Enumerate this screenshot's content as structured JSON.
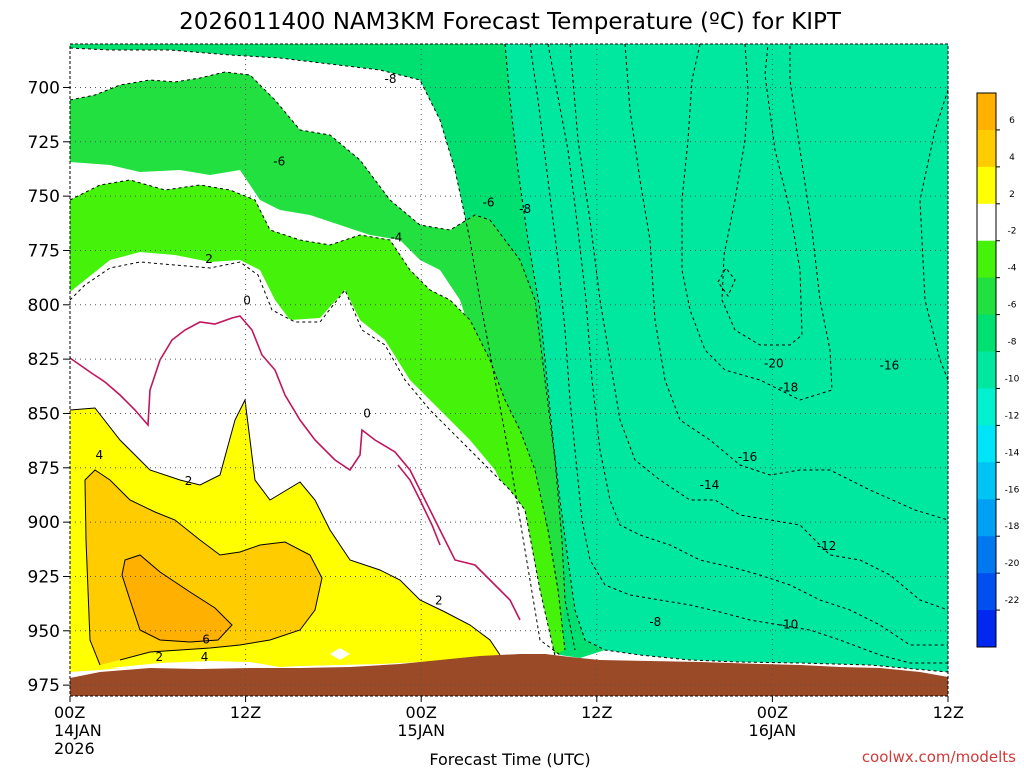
{
  "chart_data": {
    "type": "heatmap",
    "title": "2026011400 NAM3KM Forecast Temperature (ºC) for KIPT",
    "xlabel": "Forecast Time (UTC)",
    "ylabel": "",
    "credit": "coolwx.com/modelts",
    "x_range_hours": [
      0,
      60
    ],
    "y_range_hpa": [
      980,
      680
    ],
    "y_ticks": [
      {
        "value": 700,
        "label": "700"
      },
      {
        "value": 725,
        "label": "725"
      },
      {
        "value": 750,
        "label": "750"
      },
      {
        "value": 775,
        "label": "775"
      },
      {
        "value": 800,
        "label": "800"
      },
      {
        "value": 825,
        "label": "825"
      },
      {
        "value": 850,
        "label": "850"
      },
      {
        "value": 875,
        "label": "875"
      },
      {
        "value": 900,
        "label": "900"
      },
      {
        "value": 925,
        "label": "925"
      },
      {
        "value": 950,
        "label": "950"
      },
      {
        "value": 975,
        "label": "975"
      }
    ],
    "x_ticks": [
      {
        "hour": 0,
        "l1": "00Z",
        "l2": "14JAN",
        "l3": "2026"
      },
      {
        "hour": 12,
        "l1": "12Z",
        "l2": "",
        "l3": ""
      },
      {
        "hour": 24,
        "l1": "00Z",
        "l2": "15JAN",
        "l3": ""
      },
      {
        "hour": 36,
        "l1": "12Z",
        "l2": "",
        "l3": ""
      },
      {
        "hour": 48,
        "l1": "00Z",
        "l2": "16JAN",
        "l3": ""
      },
      {
        "hour": 60,
        "l1": "12Z",
        "l2": "",
        "l3": ""
      }
    ],
    "grid": true,
    "colorbar": {
      "placement": "right",
      "levels": [
        {
          "lo": 6,
          "hi": 8,
          "color": "#ffb000"
        },
        {
          "lo": 4,
          "hi": 6,
          "color": "#ffcc00"
        },
        {
          "lo": 2,
          "hi": 4,
          "color": "#ffff00"
        },
        {
          "lo": -2,
          "hi": 2,
          "color": "#ffffff"
        },
        {
          "lo": -4,
          "hi": -2,
          "color": "#44f20a"
        },
        {
          "lo": -6,
          "hi": -4,
          "color": "#22e040"
        },
        {
          "lo": -8,
          "hi": -6,
          "color": "#00e070"
        },
        {
          "lo": -10,
          "hi": -8,
          "color": "#00e8a0"
        },
        {
          "lo": -12,
          "hi": -10,
          "color": "#00f0d0"
        },
        {
          "lo": -14,
          "hi": -12,
          "color": "#00e4f8"
        },
        {
          "lo": -16,
          "hi": -14,
          "color": "#00c4f4"
        },
        {
          "lo": -18,
          "hi": -16,
          "color": "#00a0f4"
        },
        {
          "lo": -20,
          "hi": -18,
          "color": "#0078f0"
        },
        {
          "lo": -22,
          "hi": -20,
          "color": "#0050f0"
        },
        {
          "lo": -24,
          "hi": -22,
          "color": "#0028ee"
        }
      ],
      "tick_labels": [
        "6",
        "4",
        "2",
        "-2",
        "-4",
        "-6",
        "-8",
        "-10",
        "-12",
        "-14",
        "-16",
        "-18",
        "-20",
        "-22"
      ]
    },
    "contour_labels": [
      {
        "text": "-8",
        "hour": 21.9,
        "p": 696
      },
      {
        "text": "-6",
        "hour": 14.3,
        "p": 734
      },
      {
        "text": "-6",
        "hour": 28.6,
        "p": 753
      },
      {
        "text": "-8",
        "hour": 31.1,
        "p": 756
      },
      {
        "text": "-4",
        "hour": 22.3,
        "p": 769
      },
      {
        "text": "2",
        "hour": 9.5,
        "p": 779
      },
      {
        "text": "0",
        "hour": 12.1,
        "p": 798
      },
      {
        "text": "0",
        "hour": 20.3,
        "p": 850
      },
      {
        "text": "4",
        "hour": 2.0,
        "p": 869
      },
      {
        "text": "2",
        "hour": 8.1,
        "p": 881
      },
      {
        "text": "-14",
        "hour": 43.7,
        "p": 883
      },
      {
        "text": "-16",
        "hour": 46.3,
        "p": 870
      },
      {
        "text": "-18",
        "hour": 49.1,
        "p": 838
      },
      {
        "text": "-20",
        "hour": 48.1,
        "p": 827
      },
      {
        "text": "-16",
        "hour": 56.0,
        "p": 828
      },
      {
        "text": "-12",
        "hour": 51.7,
        "p": 911
      },
      {
        "text": "-10",
        "hour": 49.1,
        "p": 947
      },
      {
        "text": "-8",
        "hour": 40.0,
        "p": 946
      },
      {
        "text": "2",
        "hour": 25.2,
        "p": 936
      },
      {
        "text": "6",
        "hour": 9.3,
        "p": 954
      },
      {
        "text": "4",
        "hour": 9.2,
        "p": 962
      },
      {
        "text": "2",
        "hour": 6.1,
        "p": 962
      }
    ]
  }
}
